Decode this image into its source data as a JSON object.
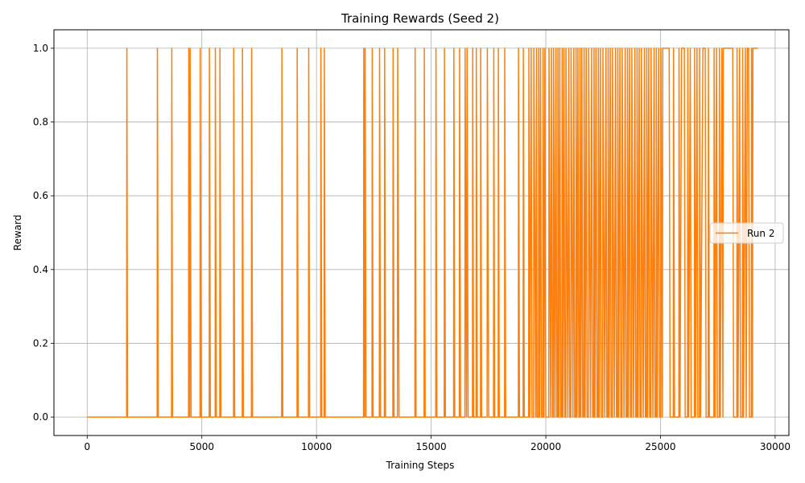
{
  "chart_data": {
    "type": "line",
    "title": "Training Rewards (Seed 2)",
    "xlabel": "Training Steps",
    "ylabel": "Reward",
    "xlim": [
      -1450,
      30600
    ],
    "ylim": [
      -0.05,
      1.05
    ],
    "x_ticks": [
      0,
      5000,
      10000,
      15000,
      20000,
      25000,
      30000
    ],
    "x_tick_labels": [
      "0",
      "5000",
      "10000",
      "15000",
      "20000",
      "25000",
      "30000"
    ],
    "y_ticks": [
      0.0,
      0.2,
      0.4,
      0.6,
      0.8,
      1.0
    ],
    "y_tick_labels": [
      "0.0",
      "0.2",
      "0.4",
      "0.6",
      "0.8",
      "1.0"
    ],
    "grid": true,
    "legend_position": "center-right",
    "series": [
      {
        "name": "Run 2",
        "color": "#ff7f0e",
        "points": [
          [
            0,
            0
          ],
          [
            1720,
            0
          ],
          [
            1730,
            1
          ],
          [
            1760,
            0
          ],
          [
            3050,
            0
          ],
          [
            3060,
            1
          ],
          [
            3100,
            0
          ],
          [
            3680,
            0
          ],
          [
            3690,
            1
          ],
          [
            3720,
            0
          ],
          [
            4420,
            0
          ],
          [
            4430,
            1
          ],
          [
            4470,
            0
          ],
          [
            4490,
            1
          ],
          [
            4530,
            0
          ],
          [
            4920,
            0
          ],
          [
            4930,
            1
          ],
          [
            4970,
            0
          ],
          [
            5320,
            0
          ],
          [
            5330,
            1
          ],
          [
            5370,
            0
          ],
          [
            5580,
            0
          ],
          [
            5590,
            1
          ],
          [
            5630,
            0
          ],
          [
            5780,
            0
          ],
          [
            5790,
            1
          ],
          [
            5830,
            0
          ],
          [
            6380,
            0
          ],
          [
            6390,
            1
          ],
          [
            6430,
            0
          ],
          [
            6760,
            0
          ],
          [
            6770,
            1
          ],
          [
            6810,
            0
          ],
          [
            7160,
            0
          ],
          [
            7170,
            1
          ],
          [
            7210,
            0
          ],
          [
            8480,
            0
          ],
          [
            8490,
            1
          ],
          [
            8530,
            0
          ],
          [
            9150,
            0
          ],
          [
            9160,
            1
          ],
          [
            9200,
            0
          ],
          [
            9650,
            0
          ],
          [
            9660,
            1
          ],
          [
            9700,
            0
          ],
          [
            10180,
            0
          ],
          [
            10190,
            1
          ],
          [
            10230,
            0
          ],
          [
            10330,
            0
          ],
          [
            10340,
            1
          ],
          [
            10380,
            0
          ],
          [
            12050,
            0
          ],
          [
            12060,
            1
          ],
          [
            12100,
            0
          ],
          [
            12120,
            1
          ],
          [
            12160,
            0
          ],
          [
            12420,
            0
          ],
          [
            12430,
            1
          ],
          [
            12470,
            0
          ],
          [
            12740,
            0
          ],
          [
            12750,
            1
          ],
          [
            12790,
            0
          ],
          [
            12960,
            0
          ],
          [
            12970,
            1
          ],
          [
            13010,
            0
          ],
          [
            13330,
            0
          ],
          [
            13340,
            1
          ],
          [
            13380,
            0
          ],
          [
            13530,
            0
          ],
          [
            13540,
            1
          ],
          [
            13600,
            0
          ],
          [
            14290,
            0
          ],
          [
            14300,
            1
          ],
          [
            14340,
            0
          ],
          [
            14690,
            0
          ],
          [
            14700,
            1
          ],
          [
            14740,
            0
          ],
          [
            15200,
            0
          ],
          [
            15210,
            1
          ],
          [
            15250,
            0
          ],
          [
            15570,
            0
          ],
          [
            15580,
            1
          ],
          [
            15620,
            0
          ],
          [
            15980,
            0
          ],
          [
            15990,
            1
          ],
          [
            16030,
            0
          ],
          [
            16230,
            0
          ],
          [
            16240,
            1
          ],
          [
            16280,
            0
          ],
          [
            16470,
            0
          ],
          [
            16480,
            1
          ],
          [
            16540,
            0
          ],
          [
            16570,
            1
          ],
          [
            16610,
            0
          ],
          [
            16800,
            0
          ],
          [
            16810,
            1
          ],
          [
            16850,
            0
          ],
          [
            16960,
            0
          ],
          [
            16970,
            1
          ],
          [
            17010,
            0
          ],
          [
            17150,
            0
          ],
          [
            17160,
            1
          ],
          [
            17200,
            0
          ],
          [
            17440,
            0
          ],
          [
            17450,
            1
          ],
          [
            17510,
            0
          ],
          [
            17720,
            0
          ],
          [
            17730,
            1
          ],
          [
            17770,
            0
          ],
          [
            17920,
            0
          ],
          [
            17930,
            1
          ],
          [
            17970,
            0
          ],
          [
            18200,
            0
          ],
          [
            18210,
            1
          ],
          [
            18250,
            0
          ],
          [
            18800,
            0
          ],
          [
            18810,
            1
          ],
          [
            18850,
            0
          ],
          [
            19010,
            0
          ],
          [
            19020,
            1
          ],
          [
            19060,
            0
          ],
          [
            19250,
            0
          ],
          [
            19260,
            1
          ],
          [
            19300,
            0
          ],
          [
            19360,
            1
          ],
          [
            19400,
            0
          ],
          [
            19470,
            0
          ],
          [
            19480,
            1
          ],
          [
            19560,
            0
          ],
          [
            19590,
            1
          ],
          [
            19620,
            0
          ],
          [
            19680,
            0
          ],
          [
            19690,
            1
          ],
          [
            19730,
            0
          ],
          [
            19770,
            1
          ],
          [
            19810,
            0
          ],
          [
            19870,
            0
          ],
          [
            19880,
            1
          ],
          [
            19920,
            0
          ],
          [
            19960,
            1
          ],
          [
            20000,
            0
          ],
          [
            20130,
            0
          ],
          [
            20140,
            1
          ],
          [
            20210,
            0
          ],
          [
            20250,
            1
          ],
          [
            20290,
            0
          ],
          [
            20330,
            0
          ],
          [
            20340,
            1
          ],
          [
            20400,
            0
          ],
          [
            20440,
            1
          ],
          [
            20480,
            0
          ],
          [
            20520,
            0
          ],
          [
            20530,
            1
          ],
          [
            20570,
            0
          ],
          [
            20610,
            1
          ],
          [
            20650,
            0
          ],
          [
            20700,
            0
          ],
          [
            20710,
            1
          ],
          [
            20750,
            0
          ],
          [
            20790,
            1
          ],
          [
            20830,
            0
          ],
          [
            20870,
            0
          ],
          [
            20880,
            1
          ],
          [
            20960,
            0
          ],
          [
            21000,
            1
          ],
          [
            21040,
            0
          ],
          [
            21090,
            0
          ],
          [
            21100,
            1
          ],
          [
            21180,
            0
          ],
          [
            21220,
            1
          ],
          [
            21260,
            0
          ],
          [
            21310,
            0
          ],
          [
            21320,
            1
          ],
          [
            21360,
            0
          ],
          [
            21400,
            1
          ],
          [
            21440,
            0
          ],
          [
            21480,
            0
          ],
          [
            21490,
            1
          ],
          [
            21530,
            0
          ],
          [
            21570,
            1
          ],
          [
            21610,
            0
          ],
          [
            21660,
            0
          ],
          [
            21670,
            1
          ],
          [
            21710,
            0
          ],
          [
            21760,
            1
          ],
          [
            21800,
            0
          ],
          [
            21860,
            0
          ],
          [
            21870,
            1
          ],
          [
            21950,
            0
          ],
          [
            22000,
            1
          ],
          [
            22040,
            0
          ],
          [
            22090,
            0
          ],
          [
            22100,
            1
          ],
          [
            22140,
            0
          ],
          [
            22190,
            1
          ],
          [
            22230,
            0
          ],
          [
            22280,
            0
          ],
          [
            22290,
            1
          ],
          [
            22330,
            0
          ],
          [
            22380,
            1
          ],
          [
            22420,
            0
          ],
          [
            22480,
            0
          ],
          [
            22490,
            1
          ],
          [
            22570,
            0
          ],
          [
            22620,
            1
          ],
          [
            22660,
            0
          ],
          [
            22710,
            0
          ],
          [
            22720,
            1
          ],
          [
            22760,
            0
          ],
          [
            22810,
            1
          ],
          [
            22850,
            0
          ],
          [
            22900,
            0
          ],
          [
            22910,
            1
          ],
          [
            22990,
            0
          ],
          [
            23040,
            1
          ],
          [
            23080,
            0
          ],
          [
            23130,
            0
          ],
          [
            23140,
            1
          ],
          [
            23180,
            0
          ],
          [
            23230,
            1
          ],
          [
            23270,
            0
          ],
          [
            23320,
            0
          ],
          [
            23330,
            1
          ],
          [
            23410,
            0
          ],
          [
            23460,
            1
          ],
          [
            23500,
            0
          ],
          [
            23550,
            0
          ],
          [
            23560,
            1
          ],
          [
            23600,
            0
          ],
          [
            23650,
            1
          ],
          [
            23690,
            0
          ],
          [
            23740,
            0
          ],
          [
            23750,
            1
          ],
          [
            23830,
            0
          ],
          [
            23880,
            1
          ],
          [
            23920,
            0
          ],
          [
            23970,
            0
          ],
          [
            23980,
            1
          ],
          [
            24020,
            0
          ],
          [
            24070,
            1
          ],
          [
            24110,
            0
          ],
          [
            24160,
            0
          ],
          [
            24170,
            1
          ],
          [
            24250,
            0
          ],
          [
            24300,
            1
          ],
          [
            24340,
            0
          ],
          [
            24390,
            0
          ],
          [
            24400,
            1
          ],
          [
            24440,
            0
          ],
          [
            24490,
            1
          ],
          [
            24530,
            0
          ],
          [
            24580,
            0
          ],
          [
            24590,
            1
          ],
          [
            24670,
            0
          ],
          [
            24720,
            1
          ],
          [
            24760,
            0
          ],
          [
            24810,
            0
          ],
          [
            24820,
            1
          ],
          [
            24860,
            0
          ],
          [
            24920,
            1
          ],
          [
            24960,
            0
          ],
          [
            25010,
            0
          ],
          [
            25020,
            1
          ],
          [
            25080,
            0
          ],
          [
            25100,
            1
          ],
          [
            25380,
            1
          ],
          [
            25420,
            0
          ],
          [
            25560,
            0
          ],
          [
            25570,
            1
          ],
          [
            25610,
            0
          ],
          [
            25800,
            0
          ],
          [
            25810,
            1
          ],
          [
            25850,
            0
          ],
          [
            25920,
            1
          ],
          [
            26040,
            1
          ],
          [
            26080,
            0
          ],
          [
            26180,
            0
          ],
          [
            26190,
            1
          ],
          [
            26230,
            0
          ],
          [
            26300,
            1
          ],
          [
            26340,
            0
          ],
          [
            26480,
            0
          ],
          [
            26490,
            1
          ],
          [
            26530,
            0
          ],
          [
            26590,
            1
          ],
          [
            26630,
            0
          ],
          [
            26700,
            0
          ],
          [
            26710,
            1
          ],
          [
            26750,
            0
          ],
          [
            26850,
            1
          ],
          [
            26950,
            1
          ],
          [
            26990,
            0
          ],
          [
            27080,
            0
          ],
          [
            27090,
            1
          ],
          [
            27130,
            0
          ],
          [
            27330,
            0
          ],
          [
            27340,
            1
          ],
          [
            27380,
            0
          ],
          [
            27440,
            1
          ],
          [
            27480,
            0
          ],
          [
            27560,
            0
          ],
          [
            27570,
            1
          ],
          [
            27610,
            0
          ],
          [
            27680,
            1
          ],
          [
            27720,
            0
          ],
          [
            27740,
            1
          ],
          [
            28150,
            1
          ],
          [
            28190,
            0
          ],
          [
            28330,
            0
          ],
          [
            28340,
            1
          ],
          [
            28380,
            0
          ],
          [
            28450,
            1
          ],
          [
            28490,
            0
          ],
          [
            28570,
            0
          ],
          [
            28580,
            1
          ],
          [
            28620,
            0
          ],
          [
            28700,
            1
          ],
          [
            28740,
            0
          ],
          [
            28790,
            1
          ],
          [
            28840,
            1
          ],
          [
            28880,
            0
          ],
          [
            28960,
            0
          ],
          [
            28970,
            1
          ],
          [
            29010,
            0
          ],
          [
            29030,
            1
          ],
          [
            29250,
            1
          ]
        ]
      }
    ]
  }
}
